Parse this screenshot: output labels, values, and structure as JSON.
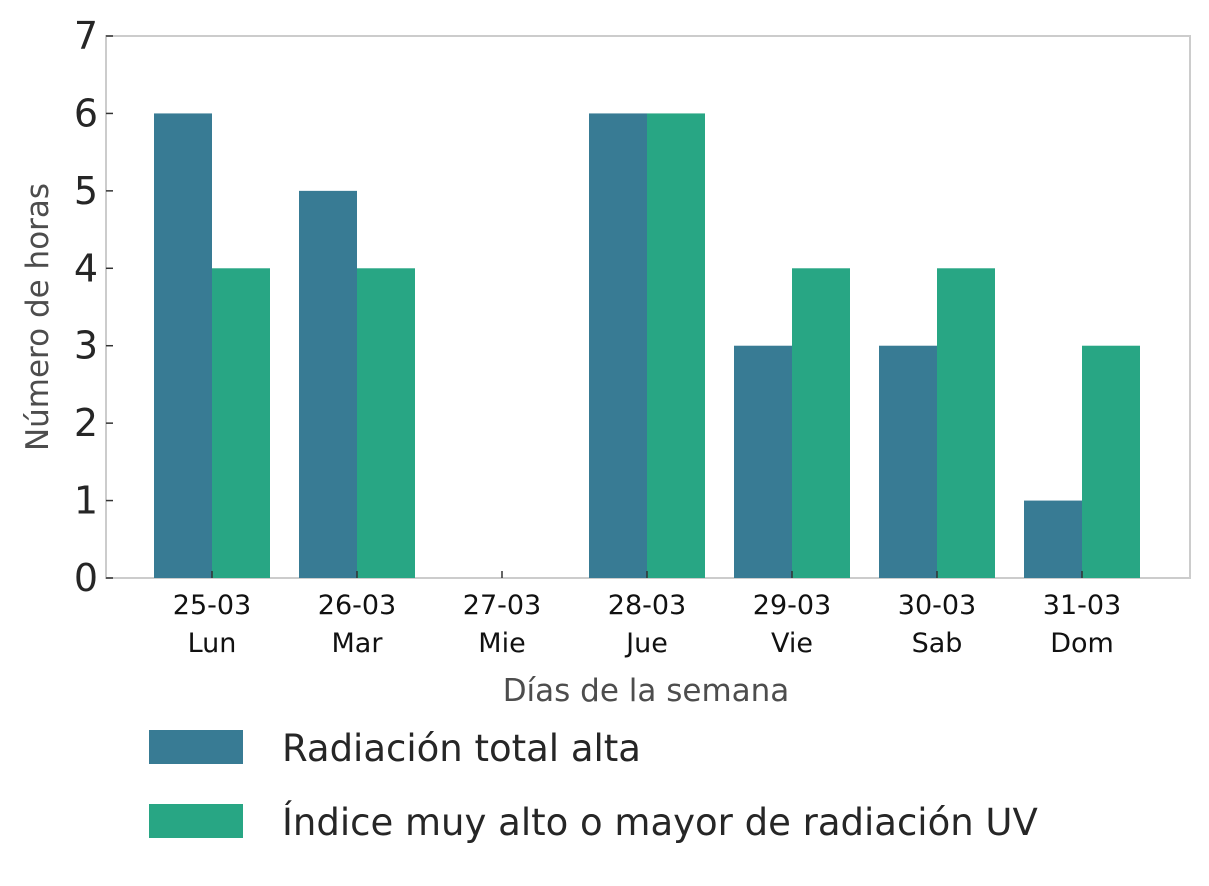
{
  "chart_data": {
    "type": "bar",
    "categories": [
      "25-03\nLun",
      "26-03\nMar",
      "27-03\nMie",
      "28-03\nJue",
      "29-03\nVie",
      "30-03\nSab",
      "31-03\nDom"
    ],
    "category_labels": [
      {
        "date": "25-03",
        "day": "Lun"
      },
      {
        "date": "26-03",
        "day": "Mar"
      },
      {
        "date": "27-03",
        "day": "Mie"
      },
      {
        "date": "28-03",
        "day": "Jue"
      },
      {
        "date": "29-03",
        "day": "Vie"
      },
      {
        "date": "30-03",
        "day": "Sab"
      },
      {
        "date": "31-03",
        "day": "Dom"
      }
    ],
    "series": [
      {
        "name": "Radiación total alta",
        "values": [
          6,
          5,
          0,
          6,
          3,
          3,
          1
        ],
        "color": "#387b94"
      },
      {
        "name": "Índice muy alto o mayor de radiación UV",
        "values": [
          4,
          4,
          0,
          6,
          4,
          4,
          3
        ],
        "color": "#28a684"
      }
    ],
    "xlabel": "Días de la semana",
    "ylabel": "Número de horas",
    "ylim": [
      0,
      7
    ],
    "yticks": [
      "0",
      "1",
      "2",
      "3",
      "4",
      "5",
      "6",
      "7"
    ],
    "grid": false,
    "legend_position": "bottom"
  }
}
